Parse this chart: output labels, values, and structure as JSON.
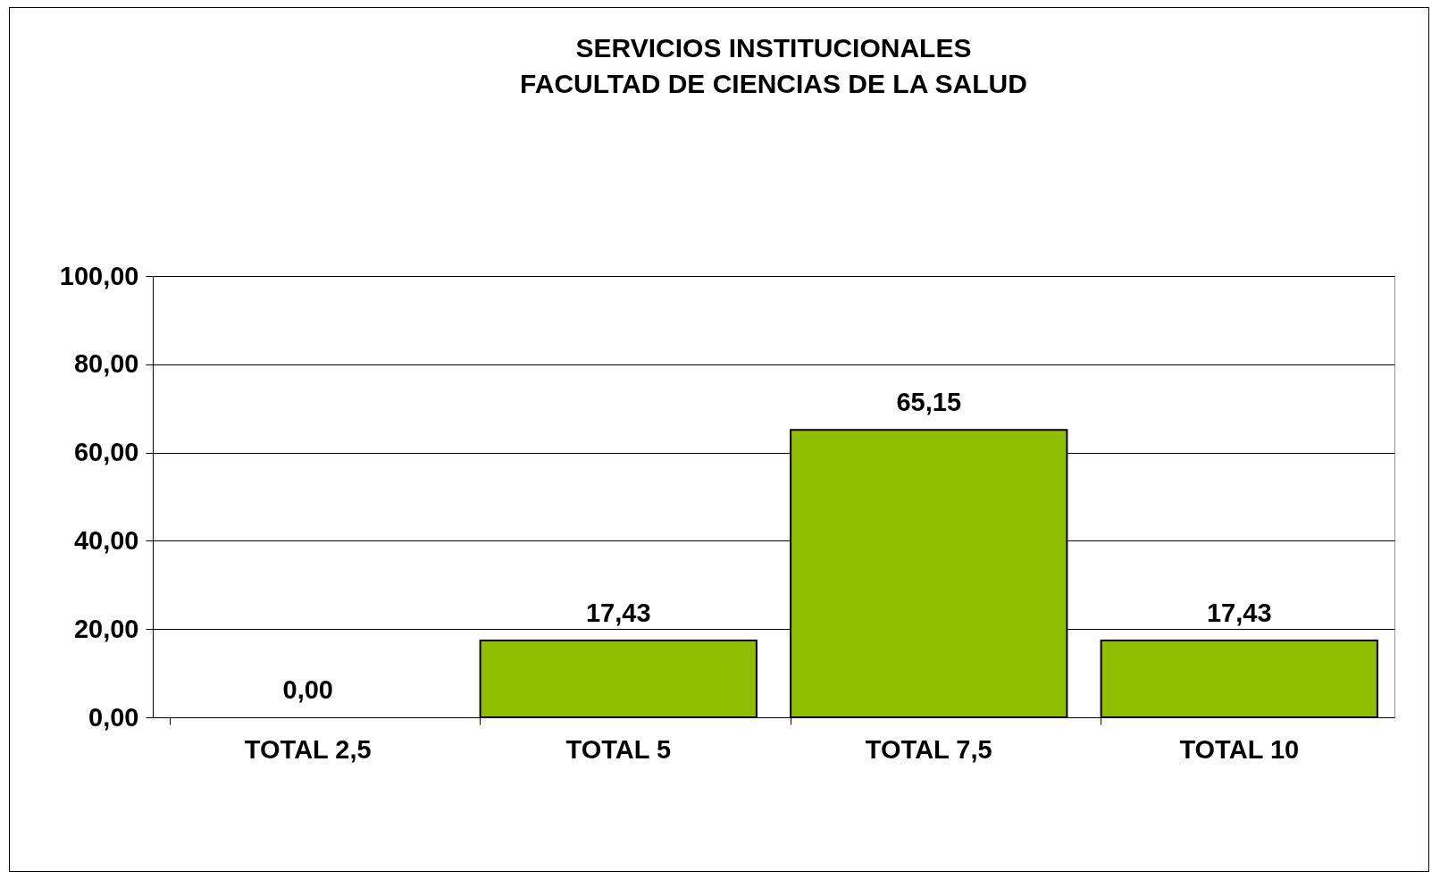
{
  "chart_data": {
    "type": "bar",
    "title": "SERVICIOS INSTITUCIONALES\nFACULTAD  DE CIENCIAS DE LA SALUD",
    "categories": [
      "TOTAL 2,5",
      "TOTAL 5",
      "TOTAL 7,5",
      "TOTAL 10"
    ],
    "values": [
      0,
      17.43,
      65.15,
      17.43
    ],
    "color": "#8fbf00",
    "value_labels": [
      "0,00",
      "17,43",
      "65,15",
      "17,43"
    ],
    "ylim": [
      0,
      100
    ],
    "yticks": [
      {
        "value": 0,
        "label": "0,00"
      },
      {
        "value": 20,
        "label": "20,00"
      },
      {
        "value": 40,
        "label": "40,00"
      },
      {
        "value": 60,
        "label": "60,00"
      },
      {
        "value": 80,
        "label": "80,00"
      },
      {
        "value": 100,
        "label": "100,00"
      }
    ],
    "grid": "y"
  }
}
